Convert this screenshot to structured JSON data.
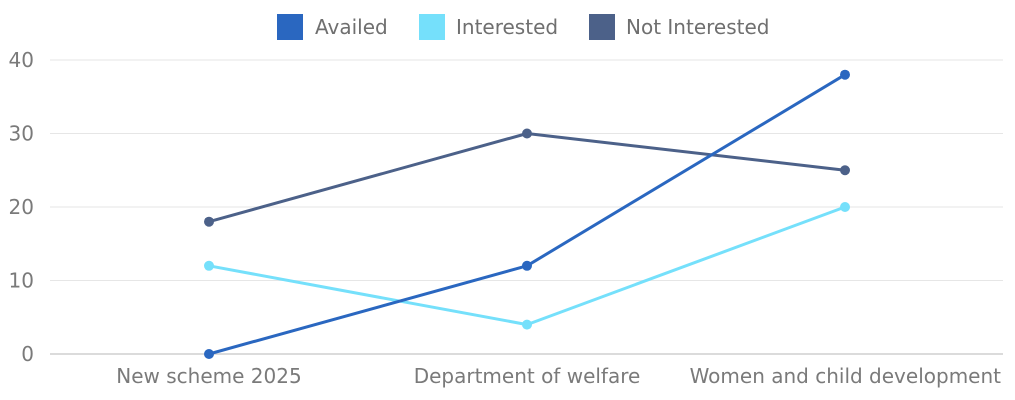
{
  "chart_data": {
    "type": "line",
    "categories": [
      "New scheme 2025",
      "Department of welfare",
      "Women and child development"
    ],
    "series": [
      {
        "name": "Availed",
        "values": [
          0,
          12,
          38
        ],
        "color": "#2a67c0"
      },
      {
        "name": "Interested",
        "values": [
          12,
          4,
          20
        ],
        "color": "#75e0fb"
      },
      {
        "name": "Not Interested",
        "values": [
          18,
          30,
          25
        ],
        "color": "#4c6189"
      }
    ],
    "ylim": [
      0,
      40
    ],
    "yticks": [
      0,
      10,
      20,
      30,
      40
    ],
    "grid": true,
    "legend_position": "top-center",
    "title": "",
    "xlabel": "",
    "ylabel": ""
  }
}
